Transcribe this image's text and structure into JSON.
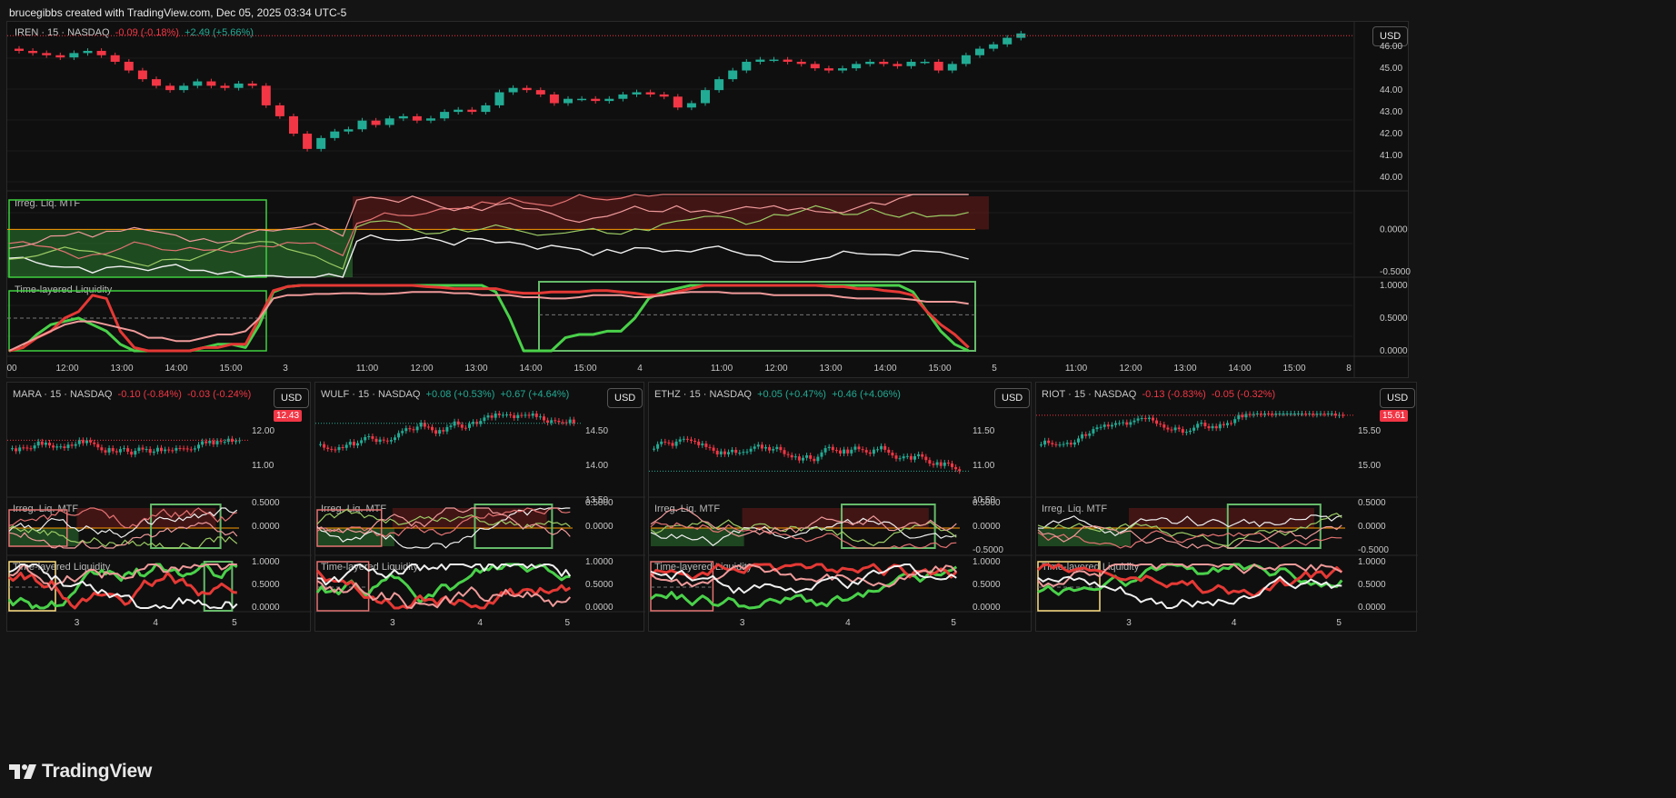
{
  "header": {
    "text": "brucegibbs created with TradingView.com, Dec 05, 2025 03:34 UTC-5"
  },
  "brand": {
    "name": "TradingView"
  },
  "colors": {
    "up": "#22ab94",
    "down": "#f23645",
    "grid": "#1e1e1e",
    "ind_green": "#4caf50",
    "ind_red": "#d32f2f"
  },
  "main": {
    "symbol": "IREN · 15 · NASDAQ",
    "chg1": "-0.09 (-0.18%)",
    "chg2": "+2.49 (+5.66%)",
    "currency": "USD",
    "price_axis": [
      "46.00",
      "45.00",
      "44.00",
      "43.00",
      "42.00",
      "41.00",
      "40.00"
    ],
    "ind1_label": "Irreg. Liq. MTF",
    "ind1_axis": [
      "0.0000",
      "-0.5000"
    ],
    "ind2_label": "Time-layered Liquidity",
    "ind2_axis": [
      "1.0000",
      "0.5000",
      "0.0000"
    ],
    "time_axis": [
      "00",
      "12:00",
      "13:00",
      "14:00",
      "15:00",
      "3",
      "11:00",
      "12:00",
      "13:00",
      "14:00",
      "15:00",
      "4",
      "11:00",
      "12:00",
      "13:00",
      "14:00",
      "15:00",
      "5",
      "11:00",
      "12:00",
      "13:00",
      "14:00",
      "15:00",
      "8"
    ]
  },
  "panels": [
    {
      "symbol": "MARA · 15 · NASDAQ",
      "chg1": "-0.10 (-0.84%)",
      "chg2": "-0.03 (-0.24%)",
      "chg1_class": "neg",
      "chg2_class": "neg",
      "currency": "USD",
      "price_tag": "12.43",
      "price_axis": [
        "12.00",
        "11.00"
      ],
      "ind1_label": "Irreg. Liq. MTF",
      "ind1_axis": [
        "0.5000",
        "0.0000"
      ],
      "ind2_label": "Time-layered Liquidity",
      "ind2_axis": [
        "1.0000",
        "0.5000",
        "0.0000"
      ],
      "time_axis": [
        "3",
        "4",
        "5"
      ]
    },
    {
      "symbol": "WULF · 15 · NASDAQ",
      "chg1": "+0.08 (+0.53%)",
      "chg2": "+0.67 (+4.64%)",
      "chg1_class": "pos",
      "chg2_class": "pos",
      "currency": "USD",
      "price_tag": "",
      "price_axis": [
        "14.50",
        "14.00",
        "13.50"
      ],
      "ind1_label": "Irreg. Liq. MTF",
      "ind1_axis": [
        "0.5000",
        "0.0000"
      ],
      "ind2_label": "Time-layered Liquidity",
      "ind2_axis": [
        "1.0000",
        "0.5000",
        "0.0000"
      ],
      "time_axis": [
        "3",
        "4",
        "5"
      ]
    },
    {
      "symbol": "ETHZ · 15 · NASDAQ",
      "chg1": "+0.05 (+0.47%)",
      "chg2": "+0.46 (+4.06%)",
      "chg1_class": "pos",
      "chg2_class": "pos",
      "currency": "USD",
      "price_tag": "",
      "price_axis": [
        "11.50",
        "11.00",
        "10.50"
      ],
      "ind1_label": "Irreg. Liq. MTF",
      "ind1_axis": [
        "0.5000",
        "0.0000",
        "-0.5000"
      ],
      "ind2_label": "Time-layered Liquidity",
      "ind2_axis": [
        "1.0000",
        "0.5000",
        "0.0000"
      ],
      "time_axis": [
        "3",
        "4",
        "5"
      ]
    },
    {
      "symbol": "RIOT · 15 · NASDAQ",
      "chg1": "-0.13 (-0.83%)",
      "chg2": "-0.05 (-0.32%)",
      "chg1_class": "neg",
      "chg2_class": "neg",
      "currency": "USD",
      "price_tag": "15.61",
      "price_axis": [
        "15.50",
        "15.00"
      ],
      "ind1_label": "Irreg. Liq. MTF",
      "ind1_axis": [
        "0.5000",
        "0.0000",
        "-0.5000"
      ],
      "ind2_label": "Time-layered Liquidity",
      "ind2_axis": [
        "1.0000",
        "0.5000",
        "0.0000"
      ],
      "time_axis": [
        "3",
        "4",
        "5"
      ]
    }
  ],
  "chart_data": [
    {
      "type": "candlestick",
      "title": "IREN · 15 · NASDAQ",
      "ylim": [
        39.5,
        46.8
      ],
      "close": [
        45.8,
        45.7,
        45.6,
        45.5,
        45.7,
        45.8,
        45.6,
        45.3,
        44.9,
        44.5,
        44.2,
        44.0,
        44.2,
        44.4,
        44.2,
        44.1,
        44.3,
        44.2,
        43.3,
        42.8,
        42.0,
        41.3,
        41.8,
        42.1,
        42.2,
        42.6,
        42.4,
        42.7,
        42.8,
        42.6,
        42.7,
        43.0,
        43.1,
        43.0,
        43.3,
        43.9,
        44.1,
        44.0,
        43.8,
        43.4,
        43.6,
        43.6,
        43.5,
        43.6,
        43.8,
        43.9,
        43.8,
        43.7,
        43.2,
        43.4,
        44.0,
        44.5,
        44.9,
        45.3,
        45.4,
        45.4,
        45.3,
        45.2,
        45.0,
        44.9,
        45.0,
        45.2,
        45.3,
        45.2,
        45.1,
        45.3,
        45.3,
        44.9,
        45.2,
        45.6,
        45.9,
        46.1,
        46.4,
        46.6
      ]
    },
    {
      "type": "line",
      "title": "Irreg. Liq. MTF",
      "ylim": [
        -0.6,
        0.45
      ]
    },
    {
      "type": "line",
      "title": "Time-layered Liquidity",
      "ylim": [
        -0.05,
        1.05
      ]
    }
  ]
}
